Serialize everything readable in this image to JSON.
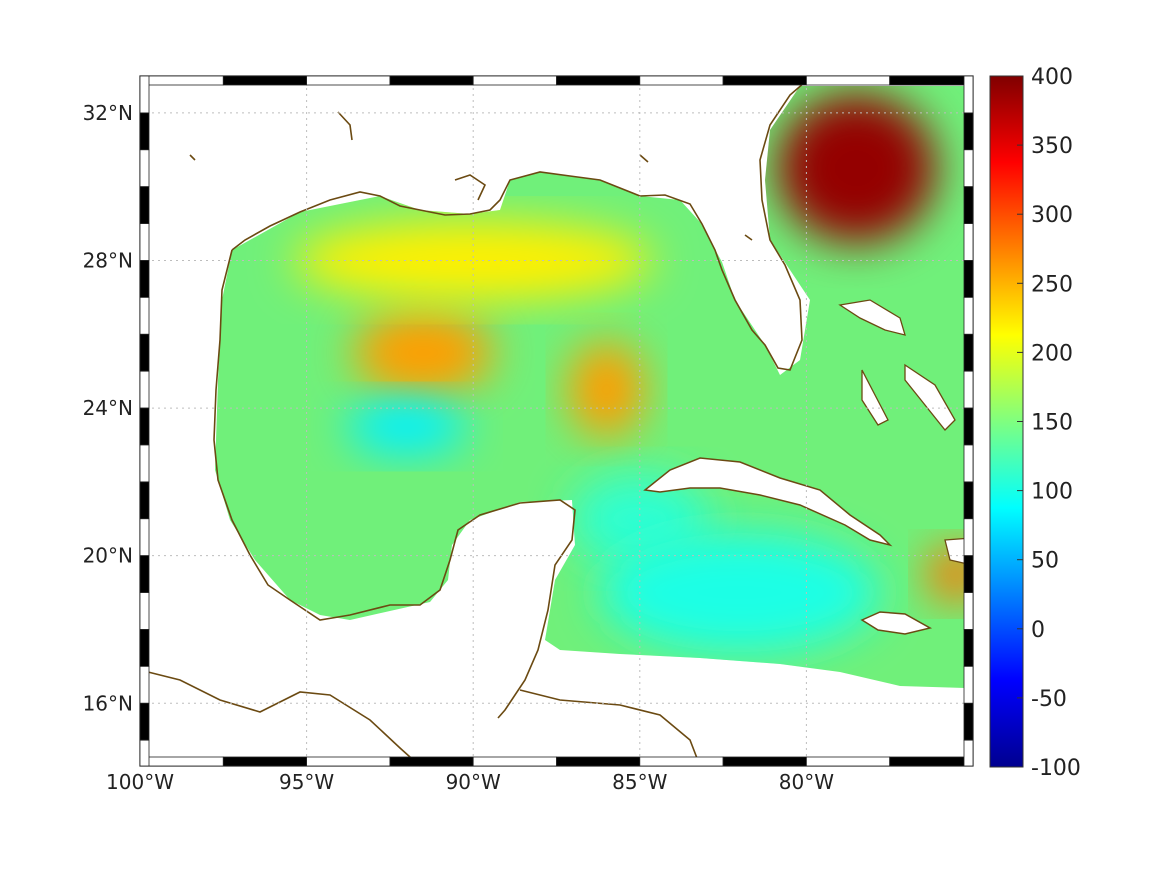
{
  "map": {
    "lon_range": [
      -100,
      -75
    ],
    "lat_range": [
      14.3,
      33
    ],
    "x_ticks": [
      {
        "lon": -100,
        "label": "100°W"
      },
      {
        "lon": -95,
        "label": "95°W"
      },
      {
        "lon": -90,
        "label": "90°W"
      },
      {
        "lon": -85,
        "label": "85°W"
      },
      {
        "lon": -80,
        "label": "80°W"
      }
    ],
    "y_ticks": [
      {
        "lat": 16,
        "label": "16°N"
      },
      {
        "lat": 20,
        "label": "20°N"
      },
      {
        "lat": 24,
        "label": "24°N"
      },
      {
        "lat": 28,
        "label": "28°N"
      },
      {
        "lat": 32,
        "label": "32°N"
      }
    ],
    "grid": true,
    "colormap": "jet",
    "coastline_color": "#6b4a12"
  },
  "colorbar": {
    "range": [
      -100,
      400
    ],
    "ticks": [
      {
        "value": 400,
        "label": "400"
      },
      {
        "value": 350,
        "label": "350"
      },
      {
        "value": 300,
        "label": "300"
      },
      {
        "value": 250,
        "label": "250"
      },
      {
        "value": 200,
        "label": "200"
      },
      {
        "value": 150,
        "label": "150"
      },
      {
        "value": 100,
        "label": "100"
      },
      {
        "value": 50,
        "label": "50"
      },
      {
        "value": 0,
        "label": "0"
      },
      {
        "value": -50,
        "label": "-50"
      },
      {
        "value": -100,
        "label": "-100"
      }
    ]
  },
  "field_features": [
    {
      "name": "central-gulf-high",
      "lon": -91.5,
      "lat": 25.5,
      "value": 260
    },
    {
      "name": "eastern-gulf-high",
      "lon": -86,
      "lat": 24.5,
      "value": 260
    },
    {
      "name": "northern-gulf",
      "lon": -90,
      "lat": 28,
      "value": 220
    },
    {
      "name": "gulf-stream-core",
      "lon": -78.5,
      "lat": 30.5,
      "value": 390
    },
    {
      "name": "yucatan-channel",
      "lon": -85,
      "lat": 21,
      "value": 110
    },
    {
      "name": "western-gulf-low",
      "lon": -92,
      "lat": 23.5,
      "value": 80
    },
    {
      "name": "caribbean",
      "lon": -82,
      "lat": 19,
      "value": 100
    },
    {
      "name": "haiti-high",
      "lon": -75.5,
      "lat": 19.5,
      "value": 280
    }
  ]
}
